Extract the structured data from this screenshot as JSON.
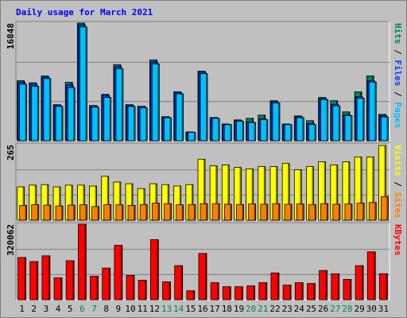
{
  "chart_data": [
    {
      "type": "bar",
      "title": "Daily usage for March 2021",
      "legend_separator": " / ",
      "ylim": [
        0,
        16848
      ],
      "yticks": [
        16848
      ],
      "grid_divisions": 3,
      "series": [
        {
          "name": "Hits",
          "color": "#00805c",
          "values": [
            8600,
            8300,
            9280,
            5160,
            8370,
            16848,
            5040,
            6650,
            10890,
            5160,
            4930,
            11580,
            3440,
            7000,
            1260,
            9970,
            3320,
            2400,
            2980,
            3210,
            3670,
            5730,
            2400,
            3550,
            2870,
            6190,
            5730,
            4130,
            7000,
            9280,
            3780
          ]
        },
        {
          "name": "Files",
          "color": "#0040ff",
          "values": [
            8400,
            8100,
            9100,
            5100,
            8000,
            16600,
            5000,
            6500,
            10600,
            5100,
            4900,
            11300,
            3400,
            6900,
            1240,
            9800,
            3300,
            2350,
            2900,
            2700,
            3150,
            5600,
            2350,
            3450,
            2450,
            6050,
            5200,
            3700,
            6300,
            8600,
            3600
          ]
        },
        {
          "name": "Pages",
          "color": "#00c0ff",
          "values": [
            8100,
            7800,
            8900,
            4900,
            7600,
            16300,
            4800,
            6200,
            10300,
            4900,
            4700,
            11000,
            3300,
            6700,
            1200,
            9600,
            3200,
            2300,
            2800,
            2600,
            3000,
            5400,
            2300,
            3300,
            2300,
            5900,
            5000,
            3600,
            6100,
            8400,
            3400
          ]
        }
      ]
    },
    {
      "type": "bar",
      "ylim": [
        0,
        265
      ],
      "yticks": [
        265
      ],
      "grid_divisions": 3,
      "series": [
        {
          "name": "Visits",
          "color": "#ffff00",
          "values": [
            117,
            123,
            125,
            117,
            123,
            123,
            120,
            154,
            134,
            128,
            111,
            128,
            125,
            120,
            125,
            214,
            191,
            194,
            185,
            180,
            188,
            188,
            199,
            177,
            188,
            205,
            194,
            205,
            222,
            222,
            262
          ]
        },
        {
          "name": "Sites",
          "color": "#ff8000",
          "values": [
            52,
            55,
            53,
            50,
            53,
            54,
            48,
            55,
            54,
            52,
            55,
            60,
            58,
            54,
            55,
            58,
            58,
            56,
            55,
            57,
            56,
            58,
            56,
            57,
            55,
            58,
            56,
            57,
            60,
            62,
            83
          ]
        }
      ]
    },
    {
      "type": "bar",
      "ylim": [
        0,
        320062
      ],
      "yticks": [
        320062
      ],
      "grid_divisions": 3,
      "categories": [
        "1",
        "2",
        "3",
        "4",
        "5",
        "6",
        "7",
        "8",
        "9",
        "10",
        "11",
        "12",
        "13",
        "14",
        "15",
        "16",
        "17",
        "18",
        "19",
        "20",
        "21",
        "22",
        "23",
        "24",
        "25",
        "26",
        "27",
        "28",
        "29",
        "30",
        "31"
      ],
      "category_colors": [
        "#000000",
        "#000000",
        "#000000",
        "#000000",
        "#000000",
        "#00805c",
        "#00805c",
        "#000000",
        "#000000",
        "#000000",
        "#000000",
        "#000000",
        "#00805c",
        "#00805c",
        "#000000",
        "#000000",
        "#000000",
        "#000000",
        "#000000",
        "#00805c",
        "#00805c",
        "#000000",
        "#000000",
        "#000000",
        "#000000",
        "#000000",
        "#00805c",
        "#00805c",
        "#000000",
        "#000000",
        "#000000"
      ],
      "series": [
        {
          "name": "KBytes",
          "color": "#ff0000",
          "values": [
            179000,
            161750,
            185900,
            92900,
            165200,
            320062,
            99800,
            134200,
            230600,
            103200,
            82600,
            254700,
            75700,
            144500,
            37900,
            196200,
            72300,
            55100,
            55100,
            58500,
            72300,
            113600,
            61900,
            72300,
            68800,
            123900,
            110100,
            86000,
            144500,
            203000,
            110100
          ]
        }
      ]
    }
  ]
}
